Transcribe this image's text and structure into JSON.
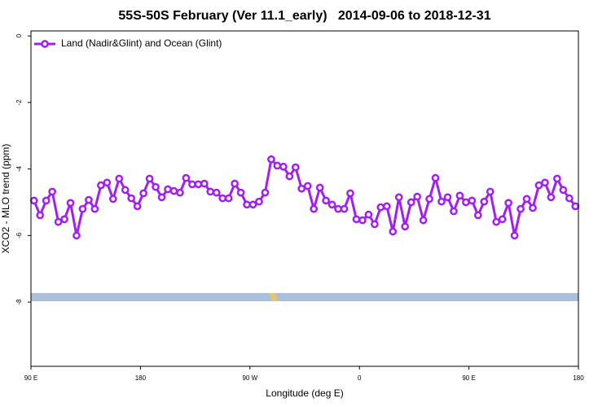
{
  "chart_data": {
    "type": "line",
    "title": "55S-50S February (Ver 11.1_early)   2014-09-06 to 2018-12-31",
    "x_label": "Longitude (deg E)",
    "y_label": "XCO2 - MLO trend (ppm)",
    "xlim": [
      90,
      540
    ],
    "ylim": [
      -9.93,
      0.15
    ],
    "xticks": [
      {
        "value": 90,
        "label": "90 E"
      },
      {
        "value": 180,
        "label": "180"
      },
      {
        "value": 270,
        "label": "90 W"
      },
      {
        "value": 360,
        "label": "0"
      },
      {
        "value": 450,
        "label": "90 E"
      },
      {
        "value": 540,
        "label": "180"
      }
    ],
    "yticks": [
      0,
      -2,
      -4,
      -6,
      -8
    ],
    "legend": "top-left",
    "x": [
      92.5,
      97.5,
      102.5,
      107.5,
      112.5,
      117.5,
      122.5,
      127.5,
      132.5,
      137.5,
      142.5,
      147.5,
      152.5,
      157.5,
      162.5,
      167.5,
      172.5,
      177.5,
      182.5,
      187.5,
      192.5,
      197.5,
      202.5,
      207.5,
      212.5,
      217.5,
      222.5,
      227.5,
      232.5,
      237.5,
      242.5,
      247.5,
      252.5,
      257.5,
      262.5,
      267.5,
      272.5,
      277.5,
      282.5,
      287.5,
      292.5,
      297.5,
      302.5,
      307.5,
      312.5,
      317.5,
      322.5,
      327.5,
      332.5,
      337.5,
      342.5,
      347.5,
      352.5,
      357.5,
      362.5,
      367.5,
      372.5,
      377.5,
      382.5,
      387.5,
      392.5,
      397.5,
      402.5,
      407.5,
      412.5,
      417.5,
      422.5,
      427.5,
      432.5,
      437.5,
      442.5,
      447.5,
      452.5,
      457.5,
      462.5,
      467.5,
      472.5,
      477.5,
      482.5,
      487.5,
      492.5,
      497.5,
      502.5,
      507.5,
      512.5,
      517.5,
      522.5,
      527.5,
      532.5,
      537.5
    ],
    "series": [
      {
        "name": "Land (Nadir&Glint) and Ocean (Glint)",
        "color": "#a020f0",
        "values": [
          -4.95,
          -5.39,
          -4.95,
          -4.68,
          -5.59,
          -5.51,
          -5.02,
          -6.0,
          -5.2,
          -4.93,
          -5.2,
          -4.49,
          -4.41,
          -4.9,
          -4.29,
          -4.63,
          -4.88,
          -5.12,
          -4.73,
          -4.29,
          -4.54,
          -4.85,
          -4.61,
          -4.66,
          -4.71,
          -4.27,
          -4.46,
          -4.46,
          -4.44,
          -4.68,
          -4.71,
          -4.88,
          -4.88,
          -4.44,
          -4.71,
          -5.07,
          -5.07,
          -4.98,
          -4.71,
          -3.71,
          -3.9,
          -3.93,
          -4.22,
          -3.95,
          -4.59,
          -4.51,
          -5.2,
          -4.56,
          -4.95,
          -5.07,
          -5.2,
          -5.2,
          -4.73,
          -5.51,
          -5.54,
          -5.37,
          -5.66,
          -5.15,
          -5.12,
          -5.88,
          -4.85,
          -5.73,
          -5.0,
          -4.83,
          -5.54,
          -4.9,
          -4.27,
          -4.98,
          -4.85,
          -5.27,
          -4.8,
          -5.0,
          -4.95,
          -5.39,
          -4.98,
          -4.68,
          -5.59,
          -5.51,
          -5.02,
          -6.0,
          -5.2,
          -4.9,
          -5.17,
          -4.49,
          -4.41,
          -4.85,
          -4.29,
          -4.63,
          -4.88,
          -5.12
        ]
      }
    ]
  }
}
